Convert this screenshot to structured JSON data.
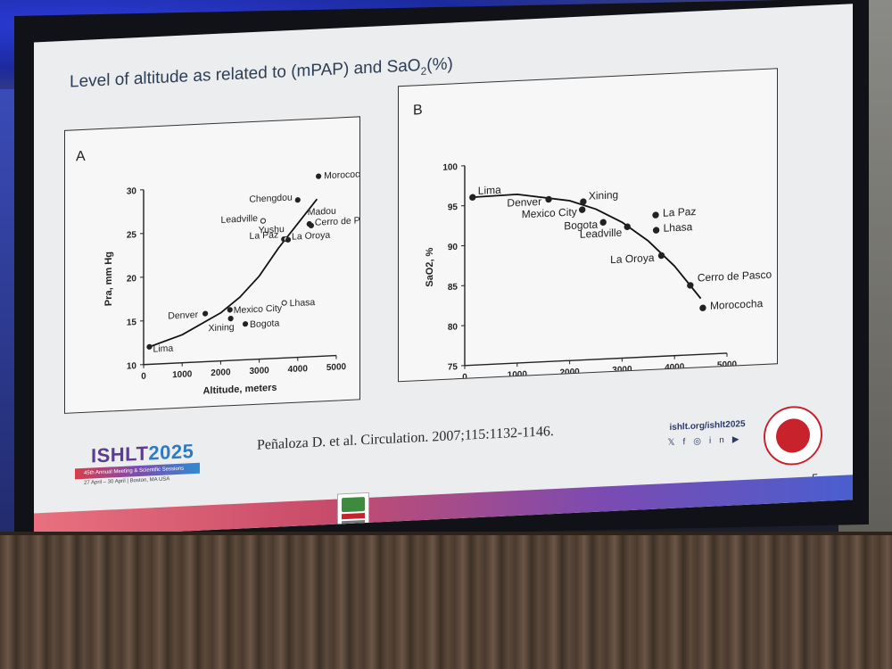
{
  "slide": {
    "title": "Level of altitude as related to (mPAP) and SaO",
    "title_sub": "2",
    "title_suffix": "(%)",
    "citation": "Peñaloza D. et al. Circulation. 2007;115:1132-1146.",
    "page_number": "5",
    "logo": {
      "name": "ISHLT",
      "year": "2025",
      "tagline": "45th Annual Meeting & Scientific Sessions",
      "dates": "27 April – 30 April | Boston, MA USA"
    },
    "social": {
      "url": "ishlt.org/ishlt2025",
      "icons": [
        "x-icon",
        "facebook-icon",
        "instagram-icon",
        "linkedin-icon",
        "youtube-icon"
      ]
    },
    "colors": {
      "background": "#ecedef",
      "bar_left": "#e8717e",
      "bar_right": "#4a5fcf",
      "seal": "#c8232c"
    }
  },
  "chart_data": [
    {
      "panel": "A",
      "type": "scatter",
      "xlabel": "Altitude, meters",
      "ylabel": "Pra, mm Hg",
      "xlim": [
        0,
        5000
      ],
      "ylim": [
        10,
        30
      ],
      "x_ticks": [
        "0",
        "1000",
        "2000",
        "3000",
        "4000",
        "5000"
      ],
      "y_ticks": [
        "10",
        "15",
        "20",
        "25",
        "30"
      ],
      "points": [
        {
          "name": "Lima",
          "x": 150,
          "y": 12,
          "filled": true
        },
        {
          "name": "Denver",
          "x": 1600,
          "y": 15.5,
          "filled": true
        },
        {
          "name": "Xining",
          "x": 2260,
          "y": 14.8,
          "filled": true
        },
        {
          "name": "Mexico City",
          "x": 2240,
          "y": 15.8,
          "filled": true
        },
        {
          "name": "Bogota",
          "x": 2640,
          "y": 14.1,
          "filled": true
        },
        {
          "name": "Lhasa",
          "x": 3650,
          "y": 16.3,
          "filled": false
        },
        {
          "name": "Leadville",
          "x": 3100,
          "y": 25.8,
          "filled": false
        },
        {
          "name": "Chengdou",
          "x": 4000,
          "y": 28,
          "filled": true
        },
        {
          "name": "La Paz",
          "x": 3640,
          "y": 23.6,
          "filled": true
        },
        {
          "name": "Yushu",
          "x": 3700,
          "y": 23.6,
          "filled": false
        },
        {
          "name": "La Oroya",
          "x": 3750,
          "y": 23.5,
          "filled": true
        },
        {
          "name": "Madou",
          "x": 4300,
          "y": 25.2,
          "filled": true
        },
        {
          "name": "Cerro de Pasco",
          "x": 4350,
          "y": 25,
          "filled": true
        },
        {
          "name": "Morococha",
          "x": 4540,
          "y": 30.6,
          "filled": true
        }
      ],
      "fit_curve": {
        "x": [
          150,
          1000,
          2000,
          2500,
          3000,
          3500,
          4000,
          4500
        ],
        "y": [
          12,
          13.2,
          15.5,
          17.2,
          19.5,
          22.6,
          25.3,
          28
        ]
      }
    },
    {
      "panel": "B",
      "type": "scatter",
      "xlabel": "Altitude, meters",
      "ylabel": "SaO2, %",
      "xlim": [
        0,
        5000
      ],
      "ylim": [
        75,
        100
      ],
      "x_ticks": [
        "0",
        "1000",
        "2000",
        "3000",
        "4000",
        "5000"
      ],
      "y_ticks": [
        "75",
        "80",
        "85",
        "90",
        "95",
        "100"
      ],
      "points": [
        {
          "name": "Lima",
          "x": 150,
          "y": 96
        },
        {
          "name": "Denver",
          "x": 1600,
          "y": 95.3
        },
        {
          "name": "Mexico City",
          "x": 2240,
          "y": 93.8
        },
        {
          "name": "Xining",
          "x": 2260,
          "y": 94.8
        },
        {
          "name": "Bogota",
          "x": 2640,
          "y": 92.1
        },
        {
          "name": "Leadville",
          "x": 3100,
          "y": 91.4
        },
        {
          "name": "La Paz",
          "x": 3640,
          "y": 92.7
        },
        {
          "name": "Lhasa",
          "x": 3650,
          "y": 90.8
        },
        {
          "name": "La Oroya",
          "x": 3750,
          "y": 87.6
        },
        {
          "name": "Cerro de Pasco",
          "x": 4300,
          "y": 83.7
        },
        {
          "name": "Morococha",
          "x": 4540,
          "y": 80.8
        }
      ],
      "fit_curve": {
        "x": [
          150,
          1000,
          2000,
          2500,
          3000,
          3500,
          4000,
          4500
        ],
        "y": [
          96,
          96.1,
          95,
          93.8,
          92,
          89.5,
          86.2,
          82
        ]
      }
    }
  ]
}
